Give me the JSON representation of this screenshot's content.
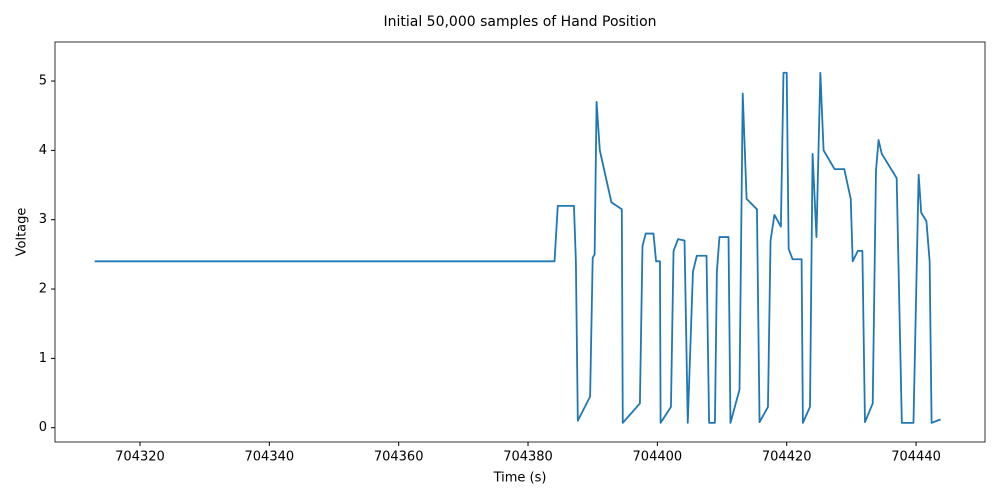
{
  "chart_data": {
    "type": "line",
    "title": "Initial 50,000 samples of Hand Position",
    "x_label": "Time (s)",
    "y_label": "Voltage",
    "color": "#1f77b4",
    "grid": false,
    "x": [
      704313.0,
      704384.1,
      704384.6,
      704387.1,
      704387.4,
      704387.7,
      704389.6,
      704390.0,
      704390.3,
      704390.6,
      704391.1,
      704392.9,
      704394.5,
      704394.65,
      704397.3,
      704397.7,
      704398.2,
      704399.4,
      704399.8,
      704400.4,
      704400.5,
      704402.1,
      704402.5,
      704403.2,
      704404.2,
      704404.7,
      704405.5,
      704406.1,
      704407.6,
      704408.0,
      704408.9,
      704409.2,
      704409.6,
      704411.0,
      704411.3,
      704412.7,
      704413.2,
      704413.8,
      704415.4,
      704415.8,
      704417.1,
      704417.5,
      704418.1,
      704419.1,
      704419.5,
      704420.0,
      704420.3,
      704420.9,
      704422.3,
      704422.5,
      704423.6,
      704424.0,
      704424.6,
      704425.2,
      704425.7,
      704427.4,
      704428.9,
      704429.9,
      704430.2,
      704431.0,
      704431.7,
      704432.1,
      704433.3,
      704433.8,
      704434.2,
      704434.7,
      704437.0,
      704437.8,
      704439.6,
      704440.4,
      704440.8,
      704441.6,
      704442.1,
      704442.4,
      704443.8
    ],
    "values": [
      2.4,
      2.4,
      3.2,
      3.2,
      2.4,
      0.1,
      0.45,
      2.45,
      2.5,
      4.7,
      4.0,
      3.25,
      3.15,
      0.07,
      0.35,
      2.62,
      2.8,
      2.8,
      2.4,
      2.4,
      0.07,
      0.3,
      2.55,
      2.72,
      2.7,
      0.07,
      2.25,
      2.48,
      2.48,
      0.07,
      0.07,
      2.25,
      2.75,
      2.75,
      0.07,
      0.55,
      4.82,
      3.3,
      3.15,
      0.08,
      0.3,
      2.7,
      3.07,
      2.9,
      5.12,
      5.12,
      2.58,
      2.43,
      2.43,
      0.07,
      0.3,
      3.95,
      2.75,
      5.12,
      4.0,
      3.73,
      3.73,
      3.3,
      2.4,
      2.55,
      2.55,
      0.08,
      0.35,
      3.7,
      4.15,
      3.95,
      3.6,
      0.07,
      0.07,
      3.65,
      3.1,
      2.98,
      2.4,
      0.07,
      0.12
    ],
    "xlim": [
      704306.86,
      704450.66
    ],
    "xticks": [
      704320,
      704340,
      704360,
      704380,
      704400,
      704420,
      704440
    ],
    "ylim": [
      -0.206,
      5.563
    ],
    "yticks": [
      0,
      1,
      2,
      3,
      4,
      5
    ]
  }
}
